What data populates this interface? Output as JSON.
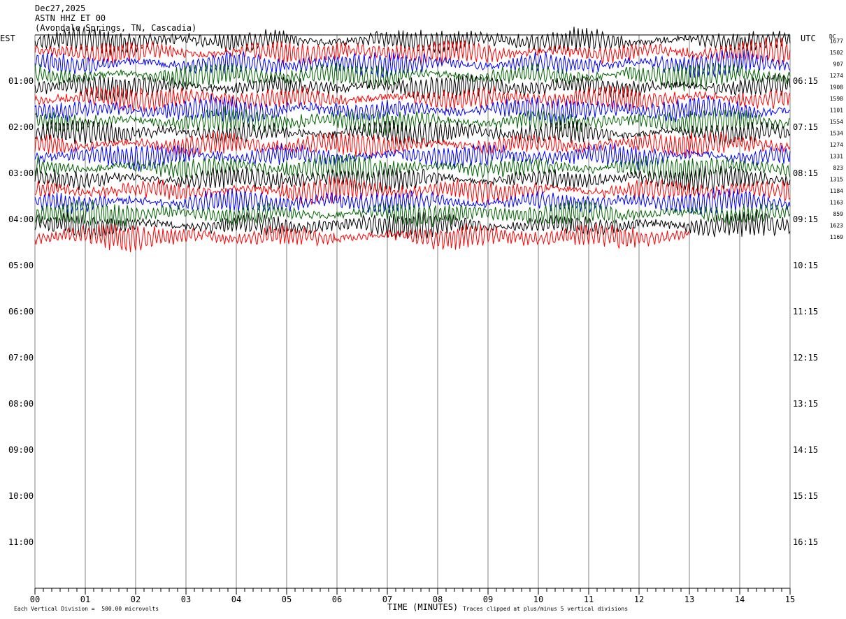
{
  "header": {
    "date": "Dec27,2025",
    "channel": "ASTN HHZ ET 00",
    "location": "(Avondale Springs, TN, Cascadia)"
  },
  "left_zone": "EST",
  "right_zone": "UTC",
  "dc_label": "DC",
  "footer": {
    "scale_note": "Each Vertical Division =  500.00 microvolts",
    "clip_note": "Traces clipped at plus/minus 5 vertical divisions"
  },
  "chart_data": {
    "type": "line",
    "title": "",
    "xlabel": "TIME (MINUTES)",
    "x_ticks": [
      "00",
      "01",
      "02",
      "03",
      "04",
      "05",
      "06",
      "07",
      "08",
      "09",
      "10",
      "11",
      "12",
      "13",
      "14",
      "15"
    ],
    "xlim": [
      0,
      15
    ],
    "rows_total": 48,
    "rows_minutes": 15,
    "left_hour_labels": [
      "01:00",
      "02:00",
      "03:00",
      "04:00",
      "05:00",
      "06:00",
      "07:00",
      "08:00",
      "09:00",
      "10:00",
      "11:00"
    ],
    "right_hour_labels": [
      "06:15",
      "07:15",
      "08:15",
      "09:15",
      "10:15",
      "11:15",
      "12:15",
      "13:15",
      "14:15",
      "15:15",
      "16:15"
    ],
    "trace_colors": [
      "#000000",
      "#ff0000",
      "#0000ff",
      "#006400"
    ],
    "traces": [
      {
        "dc": "1677",
        "end_minute": 15
      },
      {
        "dc": "1502",
        "end_minute": 15
      },
      {
        "dc": "907",
        "end_minute": 15
      },
      {
        "dc": "1274",
        "end_minute": 15
      },
      {
        "dc": "1908",
        "end_minute": 15
      },
      {
        "dc": "1598",
        "end_minute": 15
      },
      {
        "dc": "1101",
        "end_minute": 15
      },
      {
        "dc": "1554",
        "end_minute": 15
      },
      {
        "dc": "1534",
        "end_minute": 15
      },
      {
        "dc": "1274",
        "end_minute": 15
      },
      {
        "dc": "1331",
        "end_minute": 15
      },
      {
        "dc": "823",
        "end_minute": 15
      },
      {
        "dc": "1315",
        "end_minute": 15
      },
      {
        "dc": "1184",
        "end_minute": 15
      },
      {
        "dc": "1163",
        "end_minute": 15
      },
      {
        "dc": "859",
        "end_minute": 15
      },
      {
        "dc": "1623",
        "end_minute": 15
      },
      {
        "dc": "1169",
        "end_minute": 13
      }
    ]
  }
}
